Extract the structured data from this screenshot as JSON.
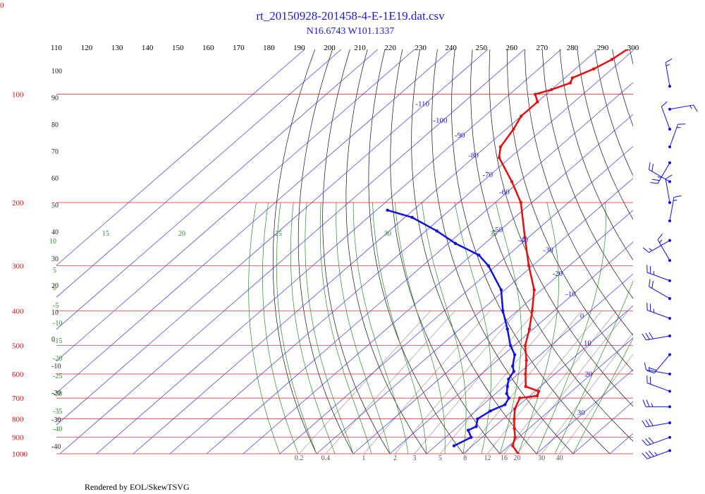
{
  "chart_data": {
    "type": "skew-t log-p",
    "title": "rt_20150928-201458-4-E-1E19.dat.csv",
    "subtitle": "N16.6743 W101.1337",
    "corner_label": "0",
    "footer": "Rendered by EOL/SkewTSVG",
    "pressure_levels": [
      100,
      200,
      300,
      400,
      500,
      600,
      700,
      800,
      900,
      1000
    ],
    "top_temperature_labels": [
      110,
      120,
      130,
      140,
      150,
      160,
      170,
      180,
      190,
      200,
      210,
      220,
      230,
      240,
      250,
      260,
      270,
      280,
      290,
      300
    ],
    "isotherm_labels": [
      {
        "v": "-110",
        "t": -110,
        "p": 108
      },
      {
        "v": "-100",
        "t": -100,
        "p": 120
      },
      {
        "v": "-90",
        "t": -90,
        "p": 132
      },
      {
        "v": "-80",
        "t": -80,
        "p": 150
      },
      {
        "v": "-70",
        "t": -70,
        "p": 170
      },
      {
        "v": "-60",
        "t": -60,
        "p": 190
      },
      {
        "v": "-50",
        "t": -50,
        "p": 242
      },
      {
        "v": "-40",
        "t": -40,
        "p": 258
      },
      {
        "v": "-30",
        "t": -30,
        "p": 275
      },
      {
        "v": "-20",
        "t": -20,
        "p": 320
      },
      {
        "v": "-10",
        "t": -10,
        "p": 365
      },
      {
        "v": "0",
        "t": 0,
        "p": 420
      },
      {
        "v": "10",
        "t": 10,
        "p": 500
      },
      {
        "v": "20",
        "t": 20,
        "p": 610
      },
      {
        "v": "30",
        "t": 30,
        "p": 780
      }
    ],
    "dry_adiabat_labels": [
      "100",
      "90",
      "80",
      "70",
      "60",
      "50",
      "40",
      "30",
      "20",
      "10",
      "0",
      "-10",
      "-20",
      "-30",
      "-40"
    ],
    "moist_adiabat_labels": [
      "10",
      "15",
      "20",
      "25",
      "30",
      "35",
      "5",
      "0",
      "-5",
      "-10",
      "-15",
      "-20",
      "-25",
      "-30",
      "-35",
      "-40"
    ],
    "mixing_ratio_labels": [
      "0.2",
      "0.4",
      "1",
      "2",
      "3",
      "5",
      "8",
      "12",
      "16",
      "20",
      "30",
      "40"
    ],
    "mixing_ratio_values": [
      0.2,
      0.4,
      1,
      2,
      3,
      5,
      8,
      12,
      16,
      20,
      30,
      40
    ],
    "temperature_profile": [
      {
        "p": 1000,
        "t": 25
      },
      {
        "p": 950,
        "t": 21
      },
      {
        "p": 900,
        "t": 19
      },
      {
        "p": 850,
        "t": 16
      },
      {
        "p": 800,
        "t": 13
      },
      {
        "p": 750,
        "t": 10
      },
      {
        "p": 700,
        "t": 8
      },
      {
        "p": 690,
        "t": 12
      },
      {
        "p": 670,
        "t": 11
      },
      {
        "p": 650,
        "t": 6
      },
      {
        "p": 600,
        "t": 2
      },
      {
        "p": 550,
        "t": -2
      },
      {
        "p": 500,
        "t": -7
      },
      {
        "p": 450,
        "t": -11
      },
      {
        "p": 400,
        "t": -16
      },
      {
        "p": 350,
        "t": -22
      },
      {
        "p": 300,
        "t": -31
      },
      {
        "p": 250,
        "t": -41
      },
      {
        "p": 200,
        "t": -53
      },
      {
        "p": 175,
        "t": -62
      },
      {
        "p": 150,
        "t": -73
      },
      {
        "p": 140,
        "t": -76
      },
      {
        "p": 125,
        "t": -78
      },
      {
        "p": 115,
        "t": -80
      },
      {
        "p": 105,
        "t": -80
      },
      {
        "p": 100,
        "t": -83
      },
      {
        "p": 97,
        "t": -80
      },
      {
        "p": 93,
        "t": -77
      },
      {
        "p": 90,
        "t": -78
      },
      {
        "p": 85,
        "t": -75
      },
      {
        "p": 80,
        "t": -73
      },
      {
        "p": 75,
        "t": -72
      },
      {
        "p": 70,
        "t": -68
      }
    ],
    "dewpoint_profile": [
      {
        "p": 950,
        "t": 5
      },
      {
        "p": 900,
        "t": 7
      },
      {
        "p": 860,
        "t": 4
      },
      {
        "p": 840,
        "t": 5
      },
      {
        "p": 800,
        "t": 3
      },
      {
        "p": 760,
        "t": 4
      },
      {
        "p": 730,
        "t": 6
      },
      {
        "p": 700,
        "t": 5
      },
      {
        "p": 680,
        "t": 3
      },
      {
        "p": 650,
        "t": 1
      },
      {
        "p": 620,
        "t": -1
      },
      {
        "p": 590,
        "t": -2
      },
      {
        "p": 570,
        "t": -4
      },
      {
        "p": 530,
        "t": -7
      },
      {
        "p": 500,
        "t": -11
      },
      {
        "p": 450,
        "t": -17
      },
      {
        "p": 400,
        "t": -24
      },
      {
        "p": 350,
        "t": -31
      },
      {
        "p": 300,
        "t": -42
      },
      {
        "p": 280,
        "t": -48
      },
      {
        "p": 260,
        "t": -58
      },
      {
        "p": 240,
        "t": -67
      },
      {
        "p": 220,
        "t": -78
      },
      {
        "p": 210,
        "t": -87
      }
    ],
    "wind_barbs": [
      {
        "p": 95,
        "dir": 350,
        "spd": 15
      },
      {
        "p": 110,
        "dir": 80,
        "spd": 15
      },
      {
        "p": 125,
        "dir": 340,
        "spd": 10
      },
      {
        "p": 140,
        "dir": 20,
        "spd": 15
      },
      {
        "p": 155,
        "dir": 210,
        "spd": 25
      },
      {
        "p": 175,
        "dir": 300,
        "spd": 20
      },
      {
        "p": 200,
        "dir": 350,
        "spd": 10
      },
      {
        "p": 225,
        "dir": 10,
        "spd": 15
      },
      {
        "p": 255,
        "dir": 240,
        "spd": 15
      },
      {
        "p": 290,
        "dir": 330,
        "spd": 15
      },
      {
        "p": 330,
        "dir": 290,
        "spd": 25
      },
      {
        "p": 370,
        "dir": 300,
        "spd": 20
      },
      {
        "p": 420,
        "dir": 290,
        "spd": 25
      },
      {
        "p": 470,
        "dir": 260,
        "spd": 30
      },
      {
        "p": 530,
        "dir": 220,
        "spd": 20
      },
      {
        "p": 600,
        "dir": 280,
        "spd": 15
      },
      {
        "p": 670,
        "dir": 290,
        "spd": 20
      },
      {
        "p": 740,
        "dir": 270,
        "spd": 25
      },
      {
        "p": 820,
        "dir": 260,
        "spd": 30
      },
      {
        "p": 900,
        "dir": 250,
        "spd": 30
      },
      {
        "p": 980,
        "dir": 250,
        "spd": 35
      }
    ],
    "colors": {
      "temperature": "#e01010",
      "dewpoint": "#1010e0",
      "isotherm": "#3a3ae0",
      "isobar": "#e02020",
      "dry_adiabat": "#111111",
      "moist_adiabat": "#2a8a2a",
      "mixing_ratio": "#999999"
    }
  }
}
